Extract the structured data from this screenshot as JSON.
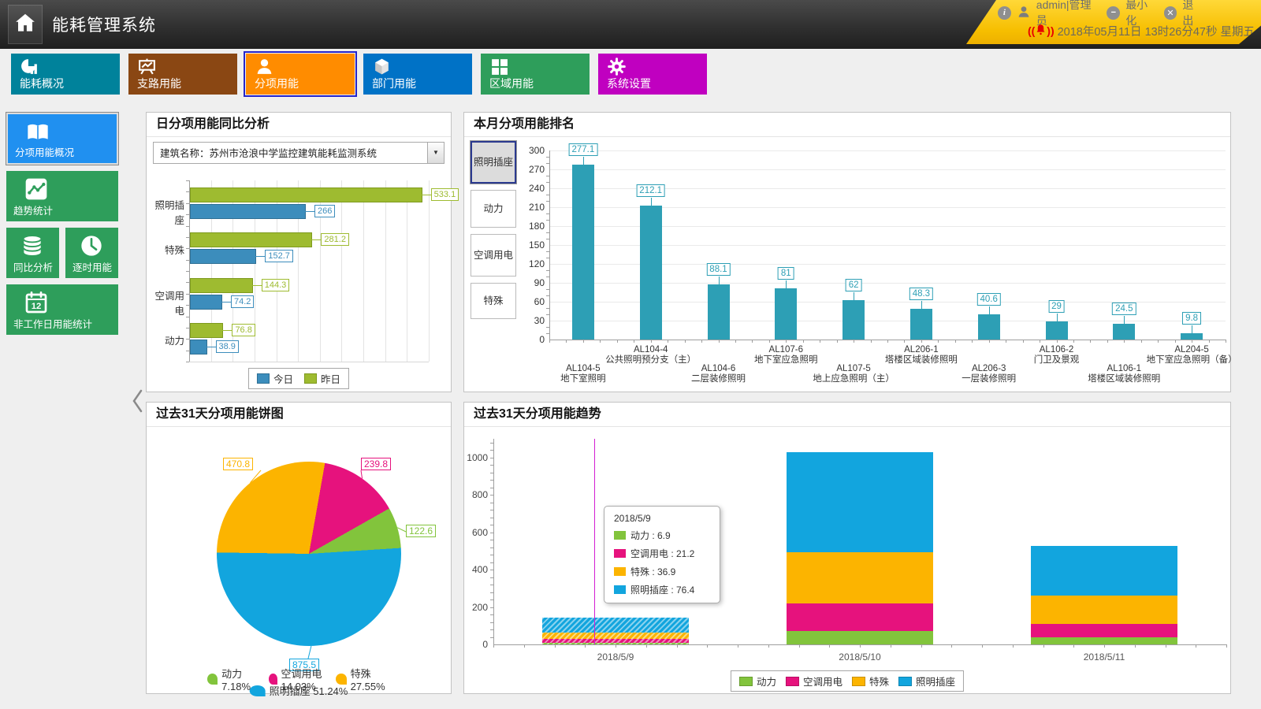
{
  "app": {
    "title": "能耗管理系统"
  },
  "header": {
    "user": "admin|管理员",
    "minimize_label": "最小化",
    "exit_label": "退出",
    "datetime": "2018年05月11日 13时26分47秒 星期五"
  },
  "nav_tiles": [
    {
      "label": "能耗概况",
      "color": "#00829B",
      "icon": "donut-chart-icon",
      "selected": false
    },
    {
      "label": "支路用能",
      "color": "#8A4713",
      "icon": "presentation-chart-icon",
      "selected": false
    },
    {
      "label": "分项用能",
      "color": "#FF8C00",
      "icon": "person-icon",
      "selected": true
    },
    {
      "label": "部门用能",
      "color": "#0072C6",
      "icon": "cube-icon",
      "selected": false
    },
    {
      "label": "区域用能",
      "color": "#2E9E5B",
      "icon": "grid-icon",
      "selected": false
    },
    {
      "label": "系统设置",
      "color": "#C000C0",
      "icon": "gear-icon",
      "selected": false
    }
  ],
  "sidebar": [
    {
      "label": "分项用能概况",
      "color": "#2090F0",
      "icon": "book-icon",
      "selected": true
    },
    {
      "label": "趋势统计",
      "color": "#2E9E5B",
      "icon": "trend-chart-icon",
      "selected": false
    },
    {
      "label": "同比分析",
      "color": "#2E9E5B",
      "icon": "database-icon",
      "selected": false
    },
    {
      "label": "逐时用能",
      "color": "#2E9E5B",
      "icon": "clock-icon",
      "selected": false
    },
    {
      "label": "非工作日用能统计",
      "color": "#2E9E5B",
      "icon": "calendar-icon",
      "selected": false
    }
  ],
  "panels": {
    "daily": {
      "title": "日分项用能同比分析",
      "building_selector": "建筑名称：苏州市沧浪中学监控建筑能耗监测系统"
    },
    "rank": {
      "title": "本月分项用能排名",
      "tabs": [
        {
          "label": "照明插座",
          "selected": true
        },
        {
          "label": "动力",
          "selected": false
        },
        {
          "label": "空调用电",
          "selected": false
        },
        {
          "label": "特殊",
          "selected": false
        }
      ]
    },
    "pie": {
      "title": "过去31天分项用能饼图"
    },
    "trend": {
      "title": "过去31天分项用能趋势"
    }
  },
  "chart_data": [
    {
      "id": "daily_compare",
      "type": "bar",
      "orientation": "horizontal",
      "categories": [
        "照明插座",
        "特殊",
        "空调用电",
        "动力"
      ],
      "series": [
        {
          "name": "今日",
          "color": "#3C8DBC",
          "border": "#2F7095",
          "values": [
            266,
            152.7,
            74.2,
            38.9
          ]
        },
        {
          "name": "昨日",
          "color": "#9EBB30",
          "border": "#7E9A1E",
          "values": [
            533.1,
            281.2,
            144.3,
            76.8
          ]
        }
      ],
      "xlim": [
        0,
        550
      ],
      "grid_step": 50,
      "legend_position": "bottom"
    },
    {
      "id": "monthly_rank",
      "type": "bar",
      "color": "#2D9FB5",
      "ylim": [
        0,
        300
      ],
      "ytick_step": 30,
      "bars": [
        {
          "code": "AL104-5",
          "name": "地下室照明",
          "value": 277.1
        },
        {
          "code": "AL104-4",
          "name": "公共照明预分支（主）",
          "value": 212.1
        },
        {
          "code": "AL104-6",
          "name": "二层装修照明",
          "value": 88.1
        },
        {
          "code": "AL107-6",
          "name": "地下室应急照明",
          "value": 81
        },
        {
          "code": "AL107-5",
          "name": "地上应急照明（主）",
          "value": 62
        },
        {
          "code": "AL206-1",
          "name": "塔楼区域装修照明",
          "value": 48.3
        },
        {
          "code": "AL206-3",
          "name": "一层装修照明",
          "value": 40.6
        },
        {
          "code": "AL106-2",
          "name": "门卫及景观",
          "value": 29
        },
        {
          "code": "AL106-1",
          "name": "塔楼区域装修照明",
          "value": 24.5
        },
        {
          "code": "AL204-5",
          "name": "地下室应急照明（备）",
          "value": 9.8
        }
      ]
    },
    {
      "id": "pie_31d",
      "type": "pie",
      "start_angle": 10,
      "slices": [
        {
          "name": "空调用电",
          "value": 239.8,
          "pct": "14.03%",
          "color": "#E6127D"
        },
        {
          "name": "动力",
          "value": 122.6,
          "pct": "7.18%",
          "color": "#82C43C"
        },
        {
          "name": "照明插座",
          "value": 875.5,
          "pct": "51.24%",
          "color": "#12A5DE"
        },
        {
          "name": "特殊",
          "value": 470.8,
          "pct": "27.55%",
          "color": "#FCB400"
        }
      ],
      "legend_order": [
        "动力",
        "空调用电",
        "特殊",
        "照明插座"
      ]
    },
    {
      "id": "trend_31d",
      "type": "stacked-bar",
      "categories": [
        "2018/5/9",
        "2018/5/10",
        "2018/5/11"
      ],
      "series": [
        {
          "name": "动力",
          "color": "#82C43C",
          "values": [
            6.9,
            73,
            36
          ]
        },
        {
          "name": "空调用电",
          "color": "#E6127D",
          "values": [
            21.2,
            146,
            75
          ]
        },
        {
          "name": "特殊",
          "color": "#FCB400",
          "values": [
            36.9,
            275,
            150
          ]
        },
        {
          "name": "照明插座",
          "color": "#12A5DE",
          "values": [
            76.4,
            536,
            264
          ]
        }
      ],
      "ylim": [
        0,
        1100
      ],
      "ytick_step": 200,
      "highlight_index": 0,
      "tooltip": {
        "title": "2018/5/9",
        "rows": [
          {
            "name": "动力",
            "value": "6.9"
          },
          {
            "name": "空调用电",
            "value": "21.2"
          },
          {
            "name": "特殊",
            "value": "36.9"
          },
          {
            "name": "照明插座",
            "value": "76.4"
          }
        ]
      }
    }
  ]
}
